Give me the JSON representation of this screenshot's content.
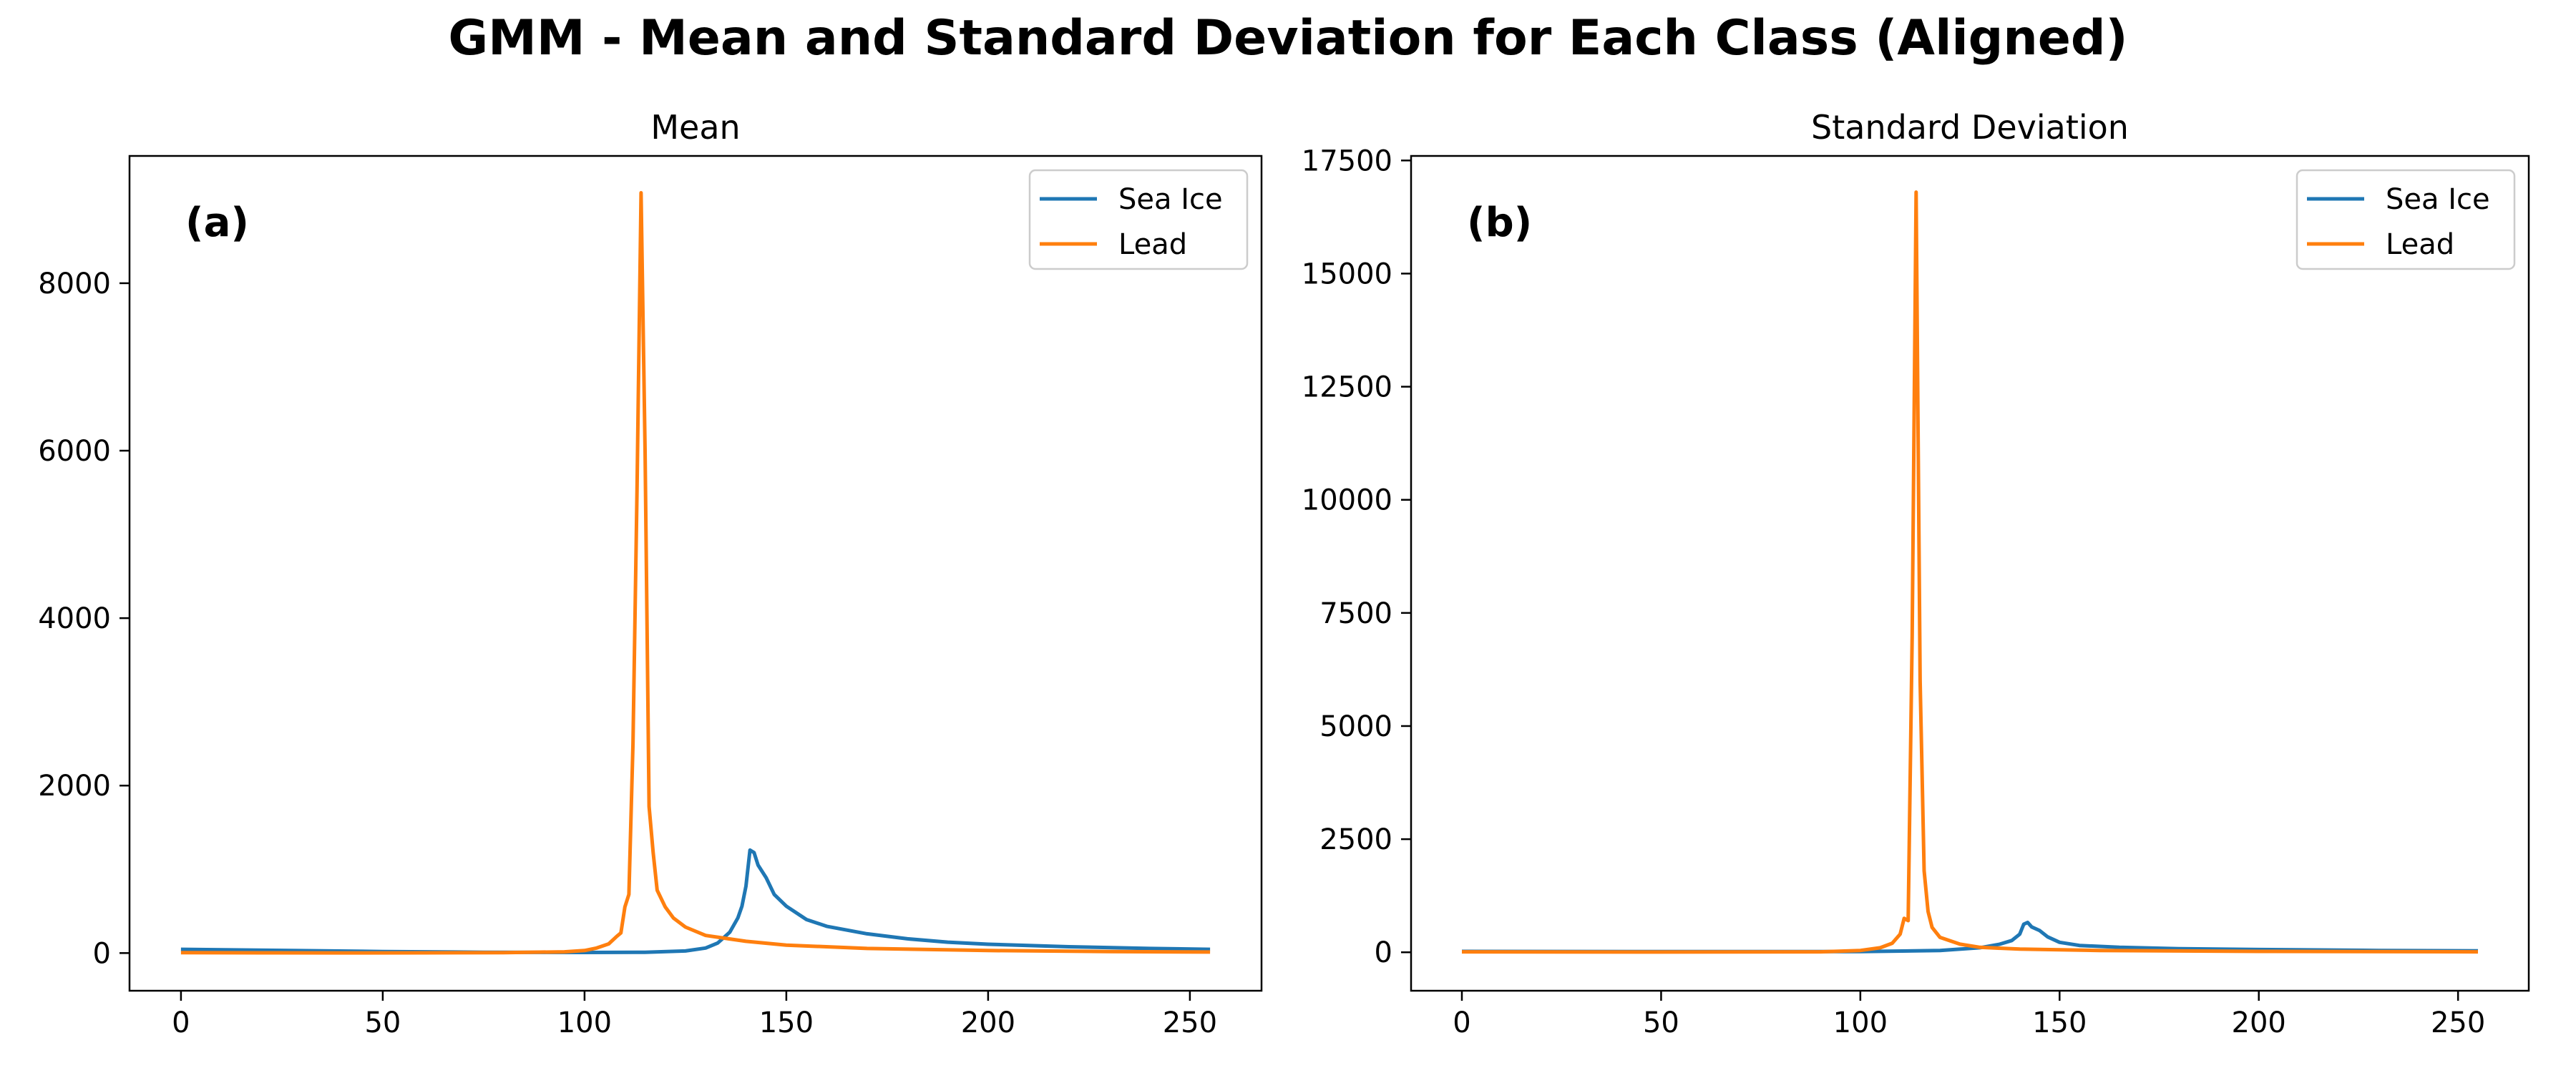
{
  "figure": {
    "title": "GMM - Mean and Standard Deviation for Each Class (Aligned)"
  },
  "chart_data": [
    {
      "type": "line",
      "title": "Mean",
      "panel_label": "(a)",
      "xlabel": "",
      "ylabel": "",
      "xlim": [
        -12.75,
        267.75
      ],
      "ylim": [
        -450,
        9520
      ],
      "x_ticks": [
        0,
        50,
        100,
        150,
        200,
        250
      ],
      "y_ticks": [
        0,
        2000,
        4000,
        6000,
        8000
      ],
      "grid": false,
      "legend_placement": "top-right",
      "series": [
        {
          "name": "Sea Ice",
          "color": "#1f77b4",
          "points": [
            [
              0,
              45
            ],
            [
              25,
              32
            ],
            [
              50,
              18
            ],
            [
              75,
              10
            ],
            [
              100,
              7
            ],
            [
              115,
              10
            ],
            [
              125,
              25
            ],
            [
              130,
              60
            ],
            [
              133,
              120
            ],
            [
              136,
              250
            ],
            [
              138,
              420
            ],
            [
              139,
              560
            ],
            [
              140,
              800
            ],
            [
              141,
              1230
            ],
            [
              142,
              1200
            ],
            [
              143,
              1050
            ],
            [
              145,
              900
            ],
            [
              147,
              700
            ],
            [
              150,
              560
            ],
            [
              155,
              400
            ],
            [
              160,
              320
            ],
            [
              170,
              230
            ],
            [
              180,
              170
            ],
            [
              190,
              130
            ],
            [
              200,
              105
            ],
            [
              220,
              75
            ],
            [
              240,
              55
            ],
            [
              255,
              45
            ]
          ]
        },
        {
          "name": "Lead",
          "color": "#ff7f0e",
          "points": [
            [
              0,
              5
            ],
            [
              20,
              3
            ],
            [
              40,
              2
            ],
            [
              60,
              3
            ],
            [
              80,
              5
            ],
            [
              95,
              15
            ],
            [
              100,
              30
            ],
            [
              103,
              60
            ],
            [
              106,
              110
            ],
            [
              108,
              200
            ],
            [
              109,
              240
            ],
            [
              110,
              550
            ],
            [
              111,
              700
            ],
            [
              112,
              2500
            ],
            [
              113,
              5500
            ],
            [
              114,
              9080
            ],
            [
              115,
              6000
            ],
            [
              116,
              1750
            ],
            [
              117,
              1200
            ],
            [
              118,
              750
            ],
            [
              120,
              550
            ],
            [
              122,
              420
            ],
            [
              125,
              310
            ],
            [
              130,
              210
            ],
            [
              140,
              140
            ],
            [
              150,
              95
            ],
            [
              170,
              55
            ],
            [
              200,
              30
            ],
            [
              230,
              18
            ],
            [
              255,
              12
            ]
          ]
        }
      ]
    },
    {
      "type": "line",
      "title": "Standard Deviation",
      "panel_label": "(b)",
      "xlabel": "",
      "ylabel": "",
      "xlim": [
        -12.75,
        267.75
      ],
      "ylim": [
        -850,
        17600
      ],
      "x_ticks": [
        0,
        50,
        100,
        150,
        200,
        250
      ],
      "y_ticks": [
        0,
        2500,
        5000,
        7500,
        10000,
        12500,
        15000,
        17500
      ],
      "grid": false,
      "legend_placement": "top-right",
      "series": [
        {
          "name": "Sea Ice",
          "color": "#1f77b4",
          "points": [
            [
              0,
              20
            ],
            [
              50,
              15
            ],
            [
              100,
              15
            ],
            [
              120,
              40
            ],
            [
              130,
              100
            ],
            [
              135,
              180
            ],
            [
              138,
              260
            ],
            [
              140,
              400
            ],
            [
              141,
              620
            ],
            [
              142,
              660
            ],
            [
              143,
              560
            ],
            [
              145,
              480
            ],
            [
              147,
              340
            ],
            [
              150,
              220
            ],
            [
              155,
              150
            ],
            [
              165,
              110
            ],
            [
              180,
              80
            ],
            [
              200,
              60
            ],
            [
              230,
              40
            ],
            [
              255,
              30
            ]
          ]
        },
        {
          "name": "Lead",
          "color": "#ff7f0e",
          "points": [
            [
              0,
              10
            ],
            [
              50,
              5
            ],
            [
              90,
              10
            ],
            [
              100,
              40
            ],
            [
              105,
              100
            ],
            [
              108,
              200
            ],
            [
              110,
              400
            ],
            [
              111,
              750
            ],
            [
              112,
              700
            ],
            [
              113,
              7000
            ],
            [
              114,
              16800
            ],
            [
              115,
              6000
            ],
            [
              116,
              1800
            ],
            [
              117,
              900
            ],
            [
              118,
              550
            ],
            [
              120,
              330
            ],
            [
              125,
              180
            ],
            [
              130,
              110
            ],
            [
              140,
              70
            ],
            [
              160,
              40
            ],
            [
              200,
              20
            ],
            [
              255,
              10
            ]
          ]
        }
      ]
    }
  ]
}
